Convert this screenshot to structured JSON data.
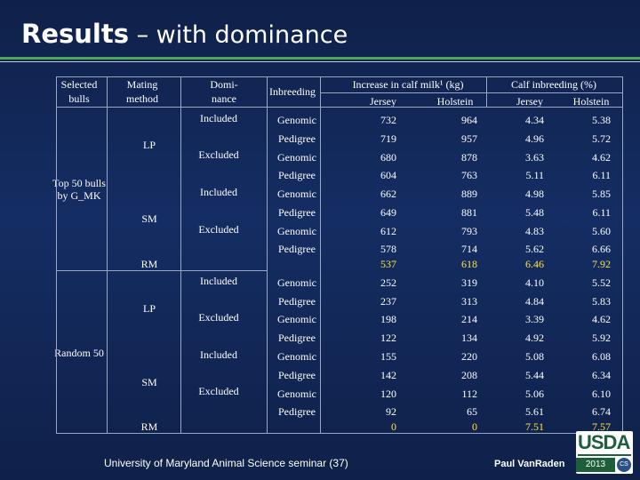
{
  "title": {
    "bold": "Results",
    "rest": " – with dominance"
  },
  "headers": {
    "selected_bulls": [
      "Selected",
      "bulls"
    ],
    "mating_method": [
      "Mating",
      "method"
    ],
    "dominance": [
      "Domi-",
      "nance"
    ],
    "inbreeding": "Inbreeding",
    "increase_milk": "Increase in calf milk¹ (kg)",
    "calf_inbreeding": "Calf inbreeding (%)",
    "jersey": "Jersey",
    "holstein": "Holstein"
  },
  "groups": {
    "top50": [
      "Top 50 bulls",
      "by G_MK"
    ],
    "random50": "Random 50",
    "lp": "LP",
    "sm": "SM",
    "rm": "RM",
    "included": "Included",
    "excluded": "Excluded",
    "genomic": "Genomic",
    "pedigree": "Pedigree"
  },
  "top50": {
    "values": [
      [
        "732",
        "964",
        "4.34",
        "5.38"
      ],
      [
        "719",
        "957",
        "4.96",
        "5.72"
      ],
      [
        "680",
        "878",
        "3.63",
        "4.62"
      ],
      [
        "604",
        "763",
        "5.11",
        "6.11"
      ],
      [
        "662",
        "889",
        "4.98",
        "5.85"
      ],
      [
        "649",
        "881",
        "5.48",
        "6.11"
      ],
      [
        "612",
        "793",
        "4.83",
        "5.60"
      ],
      [
        "578",
        "714",
        "5.62",
        "6.66"
      ]
    ],
    "rm": [
      "537",
      "618",
      "6.46",
      "7.92"
    ]
  },
  "random50": {
    "values": [
      [
        "252",
        "319",
        "4.10",
        "5.52"
      ],
      [
        "237",
        "313",
        "4.84",
        "5.83"
      ],
      [
        "198",
        "214",
        "3.39",
        "4.62"
      ],
      [
        "122",
        "134",
        "4.92",
        "5.92"
      ],
      [
        "155",
        "220",
        "5.08",
        "6.08"
      ],
      [
        "142",
        "208",
        "5.44",
        "6.34"
      ],
      [
        "120",
        "112",
        "5.06",
        "6.10"
      ],
      [
        "92",
        "65",
        "5.61",
        "6.74"
      ]
    ],
    "rm": [
      "0",
      "0",
      "7.51",
      "7.57"
    ]
  },
  "footer": "University of Maryland Animal Science seminar (37)",
  "author": "Paul VanRaden",
  "logo": {
    "text": "USDA",
    "year": "2013",
    "seal": "CS"
  },
  "colors": {
    "background": "#142d63",
    "rule": "#4aa85a",
    "rm_values": "#ffe24a"
  }
}
